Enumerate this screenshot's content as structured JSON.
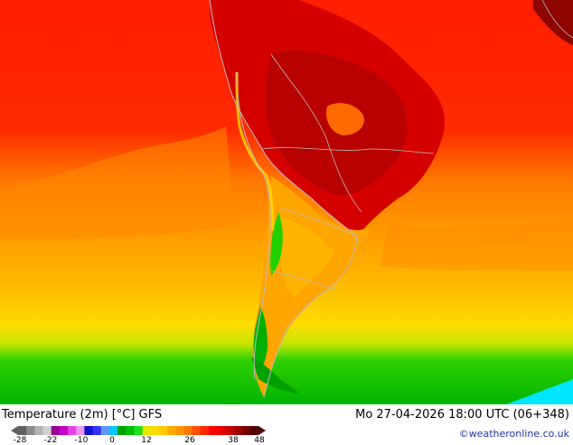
{
  "map": {
    "title": "Temperature (2m) [°C] GFS",
    "datetime": "Mo 27-04-2026 18:00 UTC (06+348)",
    "credit": "©weatheronline.co.uk"
  },
  "legend": {
    "ticks": [
      "-28",
      "-22",
      "-10",
      "0",
      "12",
      "26",
      "38",
      "48"
    ],
    "colors": [
      "#606060",
      "#8a8a8a",
      "#b4b4b4",
      "#d2d2d2",
      "#9a009a",
      "#c800c8",
      "#e640e6",
      "#f090f0",
      "#1010c8",
      "#3232ff",
      "#6496ff",
      "#00c8ff",
      "#00a000",
      "#00c000",
      "#20e020",
      "#e6e600",
      "#ffdc00",
      "#ffc800",
      "#ffaa00",
      "#ff9600",
      "#ff7800",
      "#ff5000",
      "#ff2800",
      "#ff0000",
      "#e60000",
      "#c80000",
      "#a00000",
      "#7a0000",
      "#500000"
    ]
  },
  "palette": {
    "hot": "#ff1a00",
    "warm_orange": "#ff9a00",
    "light_orange": "#ffbe00",
    "yellow": "#ffe000",
    "green": "#00d200",
    "cyan": "#00e6ff",
    "deep_red": "#c80000",
    "border": "#bcbcbc"
  }
}
